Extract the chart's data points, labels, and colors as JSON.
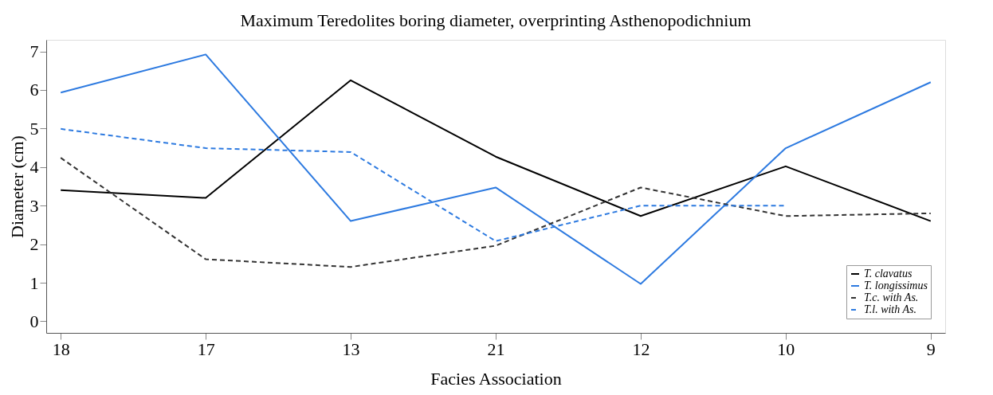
{
  "chart_data": {
    "type": "line",
    "title": "Maximum Teredolites boring diameter, overprinting Asthenopodichnium",
    "xlabel": "Facies Association",
    "ylabel": "Diameter (cm)",
    "categories": [
      "18",
      "17",
      "13",
      "21",
      "12",
      "10",
      "9"
    ],
    "ylim": [
      -0.3,
      7.3
    ],
    "yticks": [
      0,
      1,
      2,
      3,
      4,
      5,
      6,
      7
    ],
    "grid": false,
    "legend": "bottom right",
    "marker": "none",
    "series": [
      {
        "name": "T. clavatus",
        "color": "#000000",
        "line_style": "solid",
        "values": [
          3.4,
          3.2,
          6.25,
          4.27,
          2.73,
          4.02,
          2.6
        ]
      },
      {
        "name": "T. longissimus",
        "color": "#2d7ae0",
        "line_style": "solid",
        "values": [
          5.93,
          6.92,
          2.6,
          3.47,
          0.97,
          4.49,
          6.2
        ]
      },
      {
        "name": "T.c. with As.",
        "color": "#333333",
        "line_style": "dashed",
        "values": [
          4.24,
          1.61,
          1.41,
          1.96,
          3.47,
          2.73,
          2.8
        ]
      },
      {
        "name": "T.l. with As.",
        "color": "#2d7ae0",
        "line_style": "dashed",
        "values": [
          4.99,
          4.49,
          4.39,
          2.08,
          3.0,
          3.0,
          null
        ]
      }
    ]
  }
}
